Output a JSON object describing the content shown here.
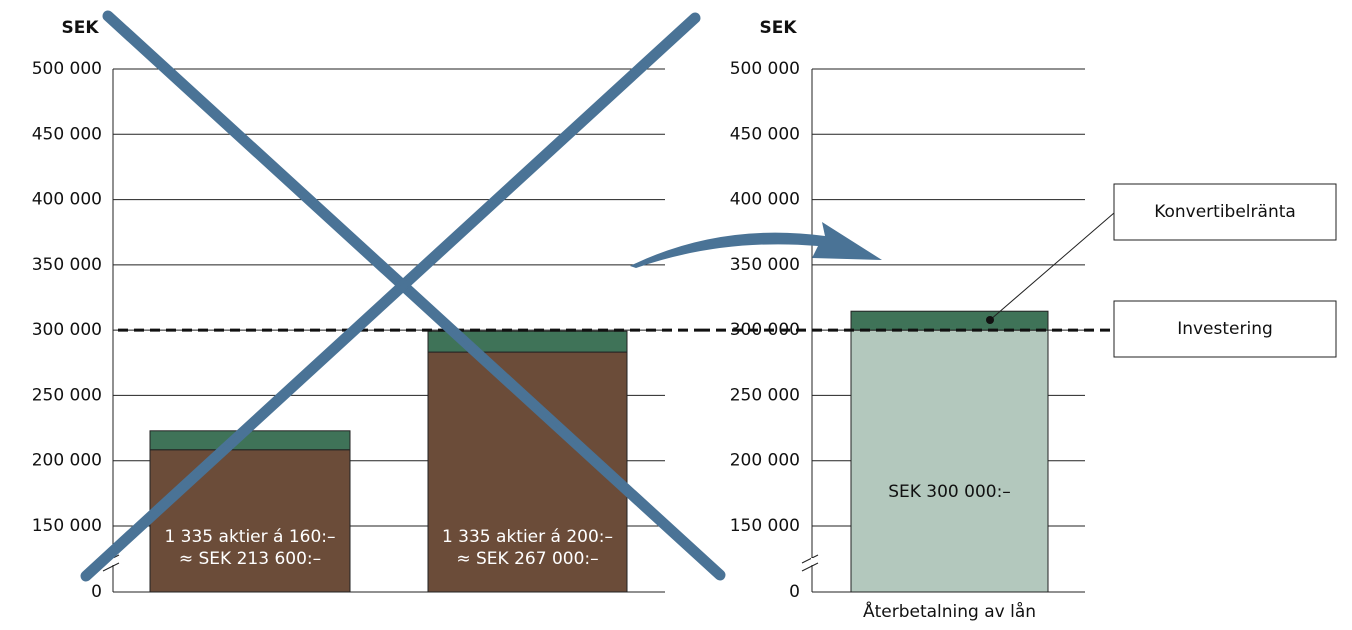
{
  "chart_data": [
    {
      "type": "bar",
      "stacked": true,
      "y_label": "SEK",
      "categories": [
        null,
        null
      ],
      "series": [
        {
          "color": "#6b4c39",
          "values": [
            208400,
            283200
          ]
        },
        {
          "color": "#3f7358",
          "values": [
            14500,
            16000
          ]
        }
      ],
      "bar_labels": [
        [
          "1 335 aktier á 160:–",
          "≈ SEK 213 600:–"
        ],
        [
          "1 335 aktier á 200:–",
          "≈ SEK 267 000:–"
        ]
      ],
      "ylim": [
        0,
        500000
      ],
      "yticks": [
        0,
        {
          "value": 150000,
          "label": "150 000"
        },
        {
          "value": 200000,
          "label": "200 000"
        },
        {
          "value": 250000,
          "label": "250 000"
        },
        {
          "value": 300000,
          "label": "300 000"
        },
        {
          "value": 350000,
          "label": "350 000"
        },
        {
          "value": 400000,
          "label": "400 000"
        },
        {
          "value": 450000,
          "label": "450 000"
        },
        {
          "value": 500000,
          "label": "500 000"
        }
      ],
      "broken_axis": true,
      "grid": true,
      "reference_line": 300000,
      "crossed_out": true
    },
    {
      "type": "bar",
      "stacked": true,
      "y_label": "SEK",
      "categories": [
        "Återbetalning av lån"
      ],
      "series": [
        {
          "color": "#b3c8bd",
          "values": [
            300000
          ]
        },
        {
          "color": "#3f7358",
          "values": [
            14500
          ]
        }
      ],
      "bar_labels": [
        [
          "SEK 300 000:–"
        ]
      ],
      "ylim": [
        0,
        500000
      ],
      "yticks": [
        0,
        {
          "value": 150000,
          "label": "150 000"
        },
        {
          "value": 200000,
          "label": "200 000"
        },
        {
          "value": 250000,
          "label": "250 000"
        },
        {
          "value": 300000,
          "label": "300 000"
        },
        {
          "value": 350000,
          "label": "350 000"
        },
        {
          "value": 400000,
          "label": "400 000"
        },
        {
          "value": 450000,
          "label": "450 000"
        },
        {
          "value": 500000,
          "label": "500 000"
        }
      ],
      "broken_axis": true,
      "grid": true,
      "reference_line": 300000,
      "annotations": [
        "Konvertibelränta",
        "Investering"
      ]
    }
  ]
}
